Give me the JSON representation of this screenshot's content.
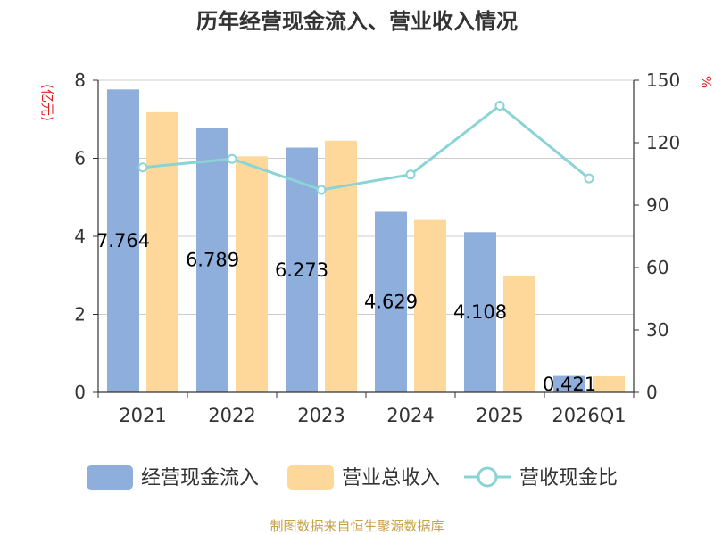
{
  "chart_data": {
    "type": "bar",
    "title": "历年经营现金流入、营业收入情况",
    "left_axis_unit": "(亿元)",
    "right_axis_unit": "%",
    "categories": [
      "2021",
      "2022",
      "2023",
      "2024",
      "2025",
      "2026Q1"
    ],
    "left_axis": {
      "min": 0,
      "max": 8,
      "ticks": [
        "0",
        "2",
        "4",
        "6",
        "8"
      ]
    },
    "right_axis": {
      "min": 0,
      "max": 150,
      "ticks": [
        "0",
        "30",
        "60",
        "90",
        "120",
        "150"
      ]
    },
    "series": [
      {
        "name": "经营现金流入",
        "type": "bar",
        "axis": "left",
        "color": "#8eaedc",
        "values": [
          7.764,
          6.789,
          6.273,
          4.629,
          4.108,
          0.421
        ],
        "labels": [
          "7.764",
          "6.789",
          "6.273",
          "4.629",
          "4.108",
          "0.421"
        ]
      },
      {
        "name": "营业总收入",
        "type": "bar",
        "axis": "left",
        "color": "#fdd89a",
        "values": [
          7.18,
          6.05,
          6.45,
          4.42,
          2.98,
          0.41
        ]
      },
      {
        "name": "营收现金比",
        "type": "line",
        "axis": "right",
        "color": "#8ad4d6",
        "values": [
          108.1,
          112.2,
          97.3,
          104.7,
          137.8,
          102.8
        ]
      }
    ],
    "grid": true,
    "legend_position": "bottom"
  },
  "footer": {
    "source": "制图数据来自恒生聚源数据库"
  }
}
